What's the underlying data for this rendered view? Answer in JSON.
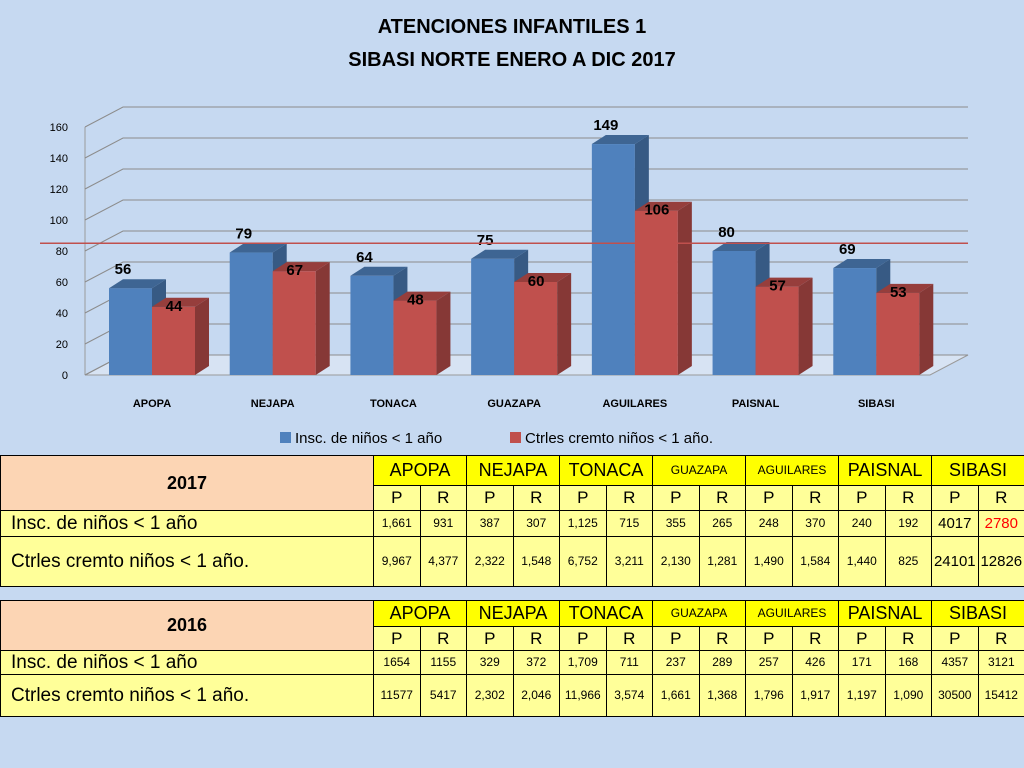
{
  "chart_data": {
    "type": "bar",
    "title": [
      "ATENCIONES INFANTILES 1",
      "SIBASI NORTE ENERO A DIC 2017"
    ],
    "categories": [
      "APOPA",
      "NEJAPA",
      "TONACA",
      "GUAZAPA",
      "AGUILARES",
      "PAISNAL",
      "SIBASI"
    ],
    "series": [
      {
        "name": "Insc. de niños < 1 año",
        "values": [
          56,
          79,
          64,
          75,
          149,
          80,
          69
        ],
        "color": "#4f81bd"
      },
      {
        "name": "Ctrles  cremto niños < 1 año.",
        "values": [
          44,
          67,
          48,
          60,
          106,
          57,
          53
        ],
        "color": "#c0504d"
      }
    ],
    "y_ticks": [
      "0",
      "20",
      "40",
      "60",
      "80",
      "100",
      "120",
      "140",
      "160"
    ],
    "ylim": [
      0,
      160
    ],
    "reference_line": {
      "value": 85,
      "color": "#c0504d"
    },
    "grid": true,
    "legend_position": "bottom",
    "style": "3d-clustered-column"
  },
  "tables": [
    {
      "year": "2017",
      "regions": [
        "APOPA",
        "NEJAPA",
        "TONACA",
        "GUAZAPA",
        "AGUILARES",
        "PAISNAL",
        "SIBASI"
      ],
      "pr": [
        "P",
        "R",
        "P",
        "R",
        "P",
        "R",
        "P",
        "R",
        "P",
        "R",
        "P",
        "R",
        "P",
        "R"
      ],
      "rows": [
        {
          "label": "Insc. de niños < 1 año",
          "values": [
            "1,661",
            "931",
            "387",
            "307",
            "1,125",
            "715",
            "355",
            "265",
            "248",
            "370",
            "240",
            "192",
            "4017",
            "2780"
          ]
        },
        {
          "label": "Ctrles  cremto niños < 1 año.",
          "values": [
            "9,967",
            "4,377",
            "2,322",
            "1,548",
            "6,752",
            "3,211",
            "2,130",
            "1,281",
            "1,490",
            "1,584",
            "1,440",
            "825",
            "24101",
            "12826"
          ]
        }
      ]
    },
    {
      "year": "2016",
      "regions": [
        "APOPA",
        "NEJAPA",
        "TONACA",
        "GUAZAPA",
        "AGUILARES",
        "PAISNAL",
        "SIBASI"
      ],
      "pr": [
        "P",
        "R",
        "P",
        "R",
        "P",
        "R",
        "P",
        "R",
        "P",
        "R",
        "P",
        "R",
        "P",
        "R"
      ],
      "rows": [
        {
          "label": "Insc. de niños < 1 año",
          "values": [
            "1654",
            "1155",
            "329",
            "372",
            "1,709",
            "711",
            "237",
            "289",
            "257",
            "426",
            "171",
            "168",
            "4357",
            "3121"
          ]
        },
        {
          "label": "Ctrles  cremto niños < 1 año.",
          "values": [
            "11577",
            "5417",
            "2,302",
            "2,046",
            "11,966",
            "3,574",
            "1,661",
            "1,368",
            "1,796",
            "1,917",
            "1,197",
            "1,090",
            "30500",
            "15412"
          ]
        }
      ]
    }
  ]
}
